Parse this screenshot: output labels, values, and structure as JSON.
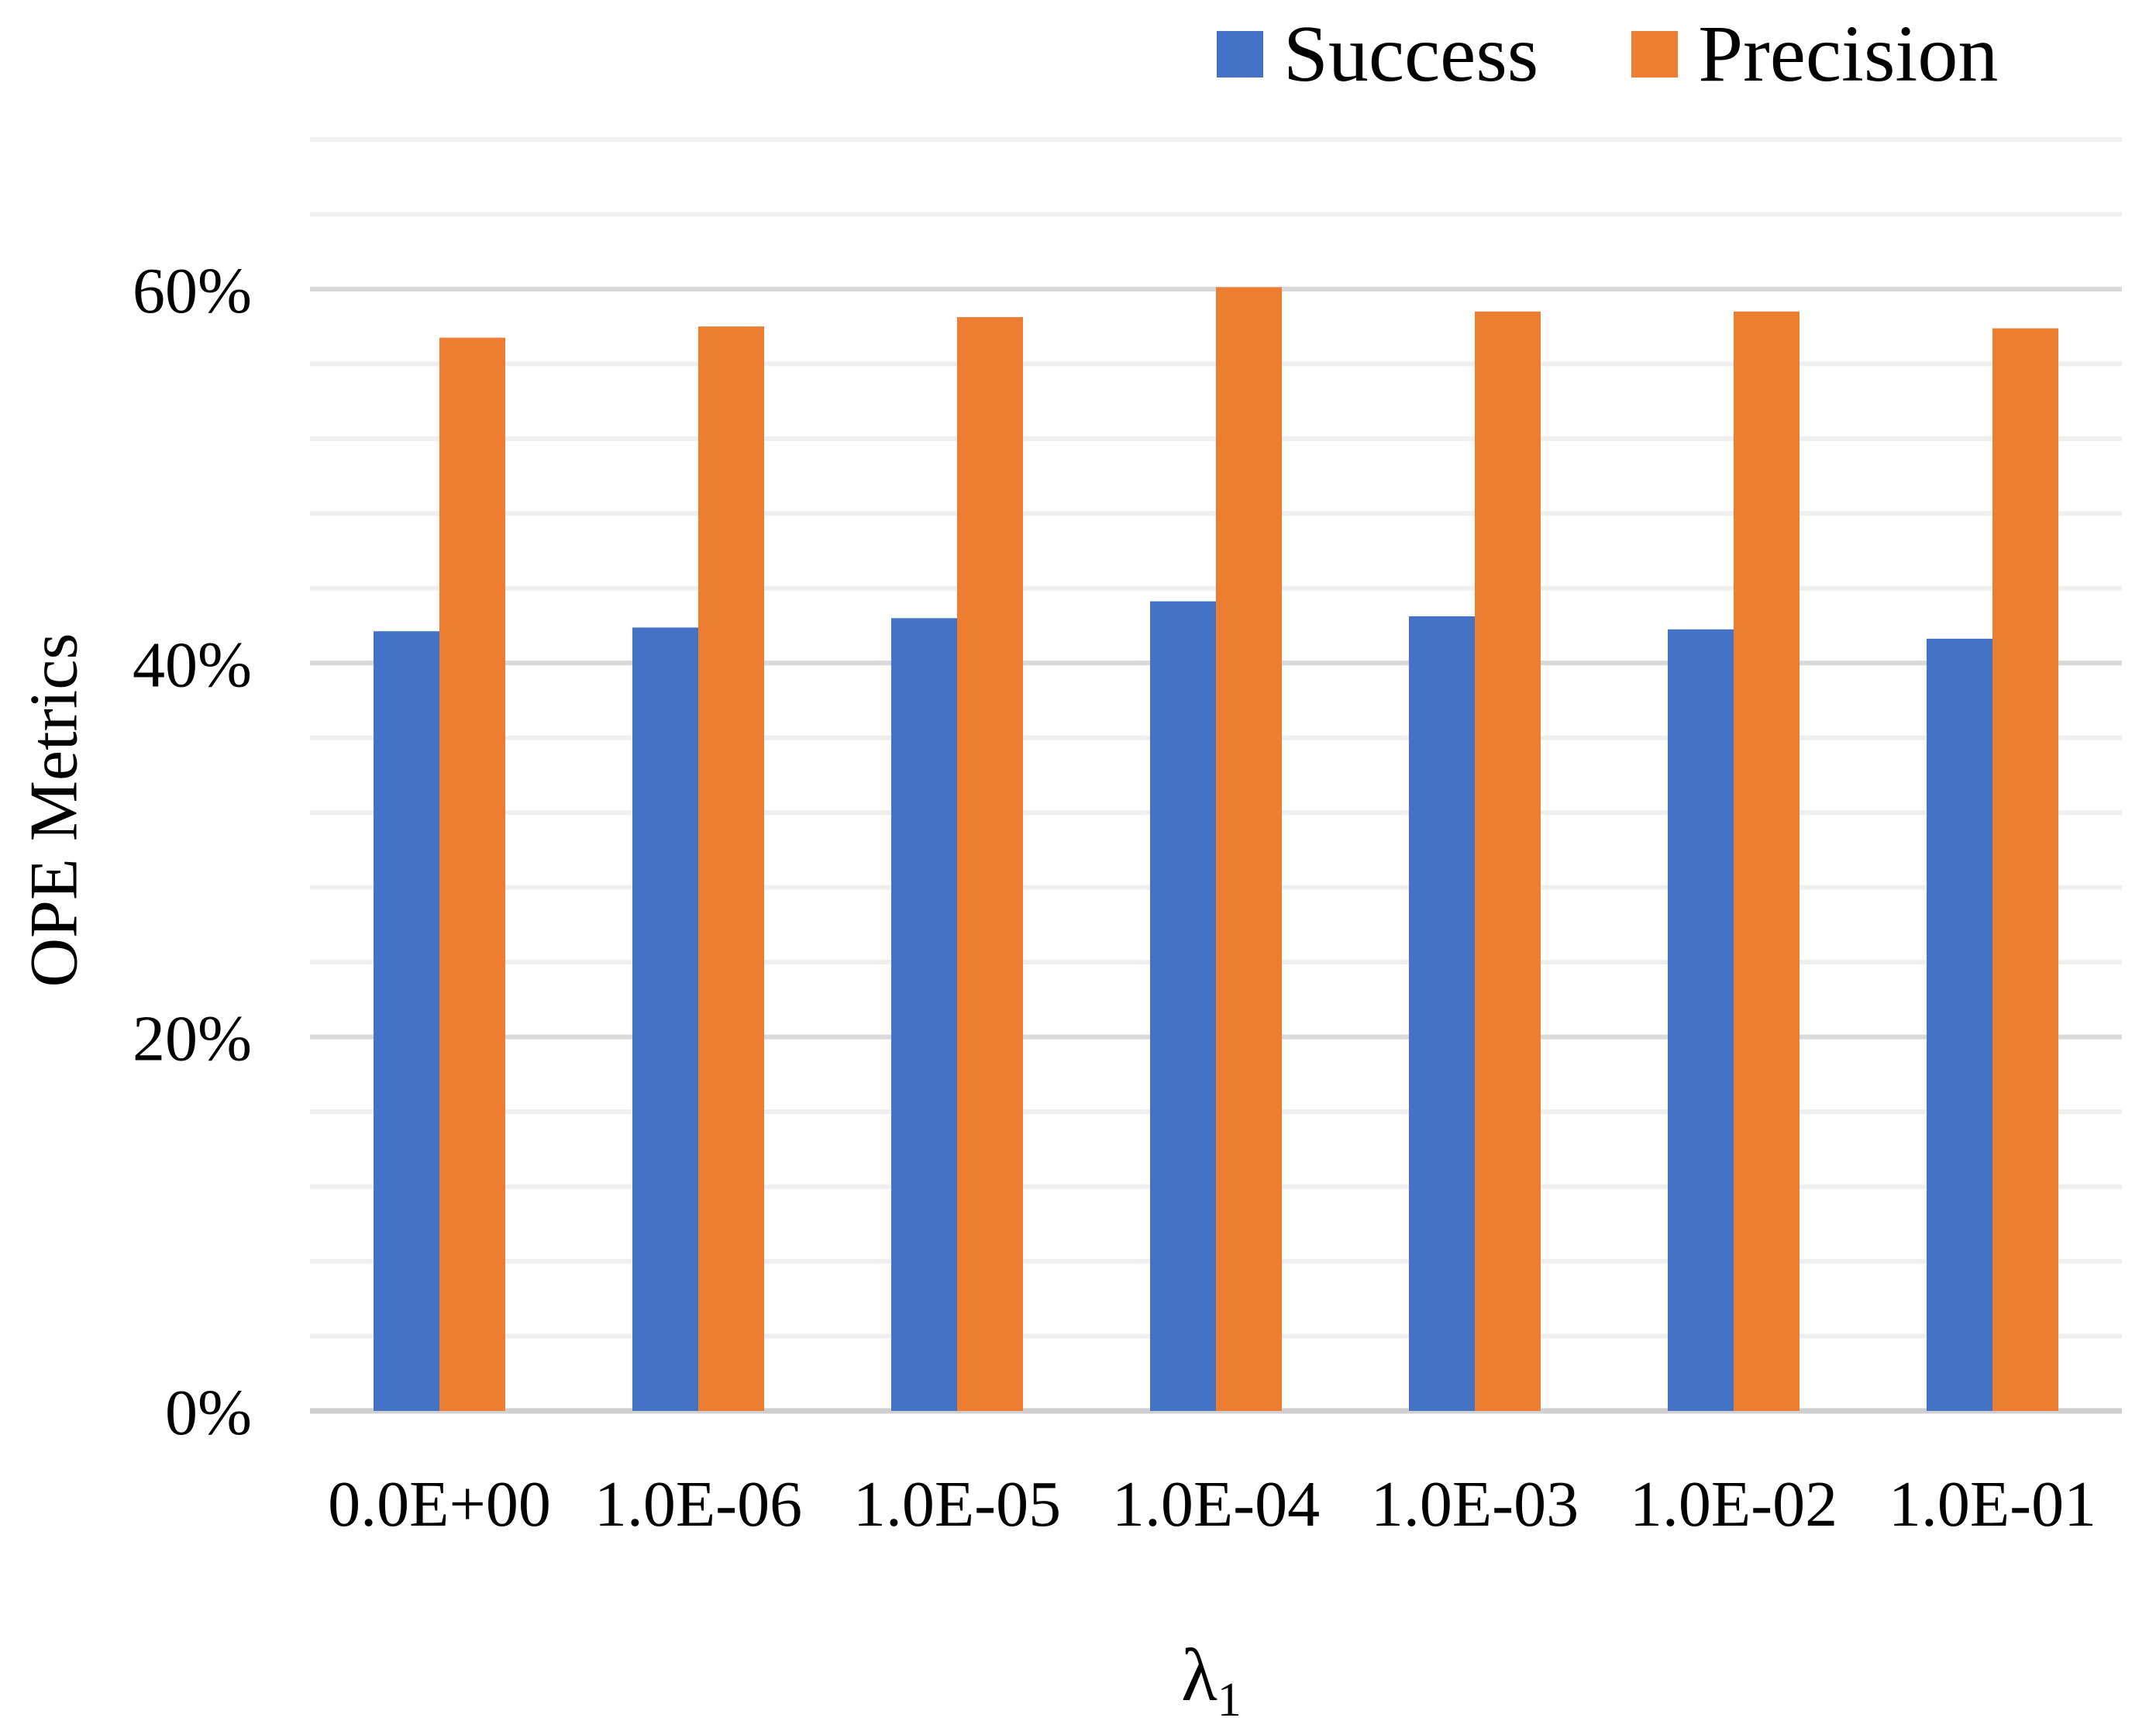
{
  "chart_data": {
    "type": "bar",
    "title": "",
    "xlabel": "λ",
    "xlabel_subscript": "1",
    "ylabel": "OPE Metrics",
    "ylim": [
      0,
      0.675
    ],
    "yticks": [
      0,
      0.2,
      0.4,
      0.6
    ],
    "ytick_labels": [
      "0%",
      "20%",
      "40%",
      "60%"
    ],
    "grid": true,
    "minor_grid_step": 0.04,
    "legend_position": "top-right",
    "categories": [
      "0.0E+00",
      "1.0E-06",
      "1.0E-05",
      "1.0E-04",
      "1.0E-03",
      "1.0E-02",
      "1.0E-01"
    ],
    "series": [
      {
        "name": "Success",
        "color": "#4472C4",
        "values": [
          0.417,
          0.419,
          0.424,
          0.433,
          0.425,
          0.418,
          0.413
        ]
      },
      {
        "name": "Precision",
        "color": "#ED7D31",
        "values": [
          0.574,
          0.58,
          0.585,
          0.601,
          0.588,
          0.588,
          0.579
        ]
      }
    ]
  }
}
